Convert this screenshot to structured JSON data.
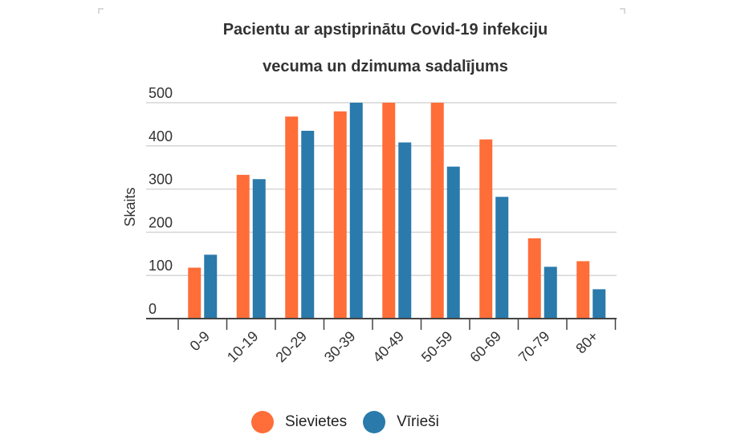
{
  "chart_data": {
    "type": "bar",
    "title_line1": "Pacientu ar apstiprinātu Covid-19 infekciju",
    "title_line2": "vecuma un dzimuma sadalījums",
    "xlabel": "",
    "ylabel": "Skaits",
    "ylim": [
      0,
      500
    ],
    "yticks": [
      "0",
      "100",
      "200",
      "300",
      "400",
      "500"
    ],
    "categories": [
      "0-9",
      "10-19",
      "20-29",
      "30-39",
      "40-49",
      "50-59",
      "60-69",
      "70-79",
      "80+"
    ],
    "series": [
      {
        "name": "Sievietes",
        "color": "#ff6d38",
        "values": [
          118,
          333,
          468,
          480,
          500,
          500,
          415,
          186,
          133
        ]
      },
      {
        "name": "Vīrieši",
        "color": "#2a7aab",
        "values": [
          148,
          323,
          435,
          500,
          408,
          352,
          282,
          120,
          68
        ]
      }
    ],
    "grid": true,
    "legend_position": "bottom"
  }
}
